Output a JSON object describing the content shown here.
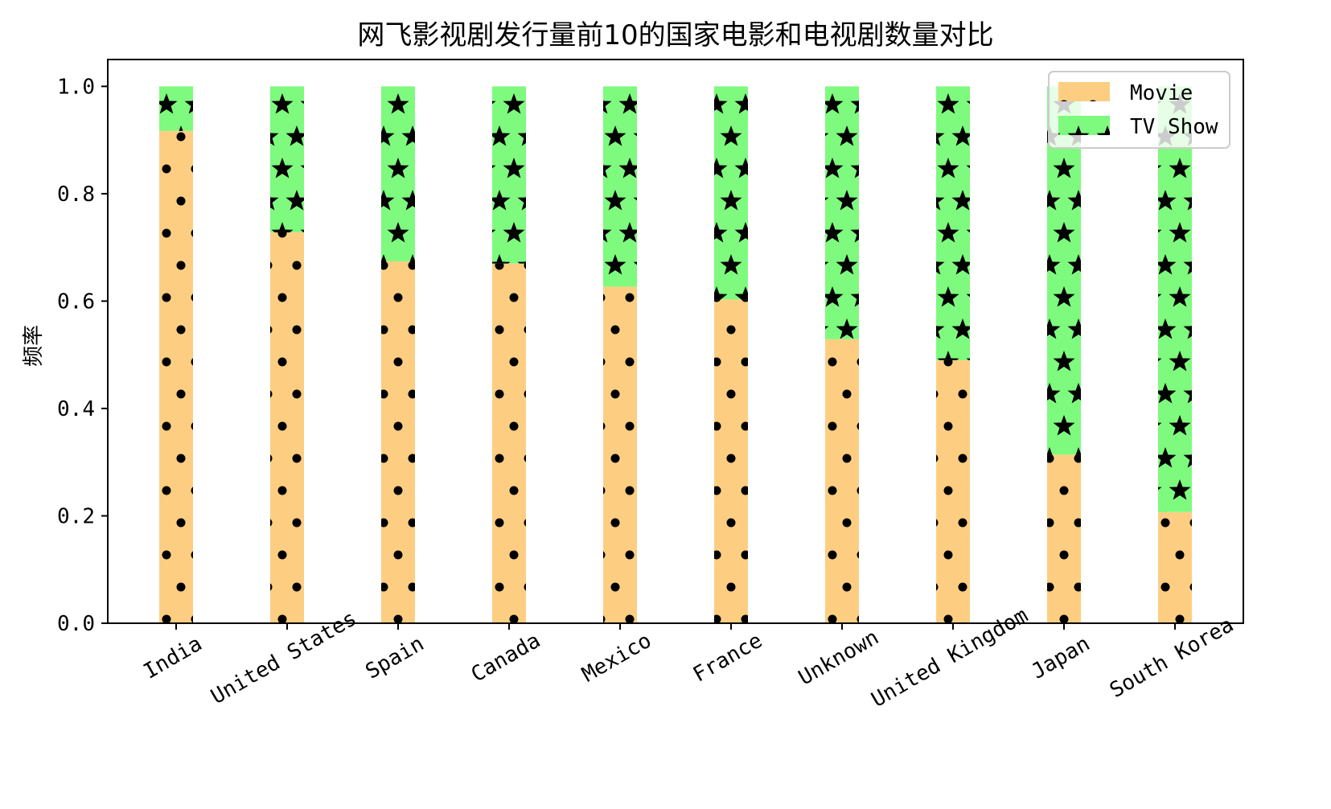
{
  "chart_data": {
    "type": "bar",
    "stacked": true,
    "title": "网飞影视剧发行量前10的国家电影和电视剧数量对比",
    "xlabel": "",
    "ylabel": "频率",
    "ylim": [
      0,
      1.05
    ],
    "yticks": [
      "0.0",
      "0.2",
      "0.4",
      "0.6",
      "0.8",
      "1.0"
    ],
    "categories": [
      "India",
      "United States",
      "Spain",
      "Canada",
      "Mexico",
      "France",
      "Unknown",
      "United Kingdom",
      "Japan",
      "South Korea"
    ],
    "series": [
      {
        "name": "Movie",
        "color": "#FDCE82",
        "pattern": "dots",
        "values": [
          0.917,
          0.728,
          0.674,
          0.67,
          0.627,
          0.603,
          0.529,
          0.49,
          0.314,
          0.207
        ]
      },
      {
        "name": "TV Show",
        "color": "#7EFA7E",
        "pattern": "stars",
        "values": [
          0.083,
          0.272,
          0.326,
          0.33,
          0.373,
          0.397,
          0.471,
          0.51,
          0.686,
          0.793
        ]
      }
    ],
    "legend": {
      "position": "top-right"
    },
    "grid": false
  }
}
